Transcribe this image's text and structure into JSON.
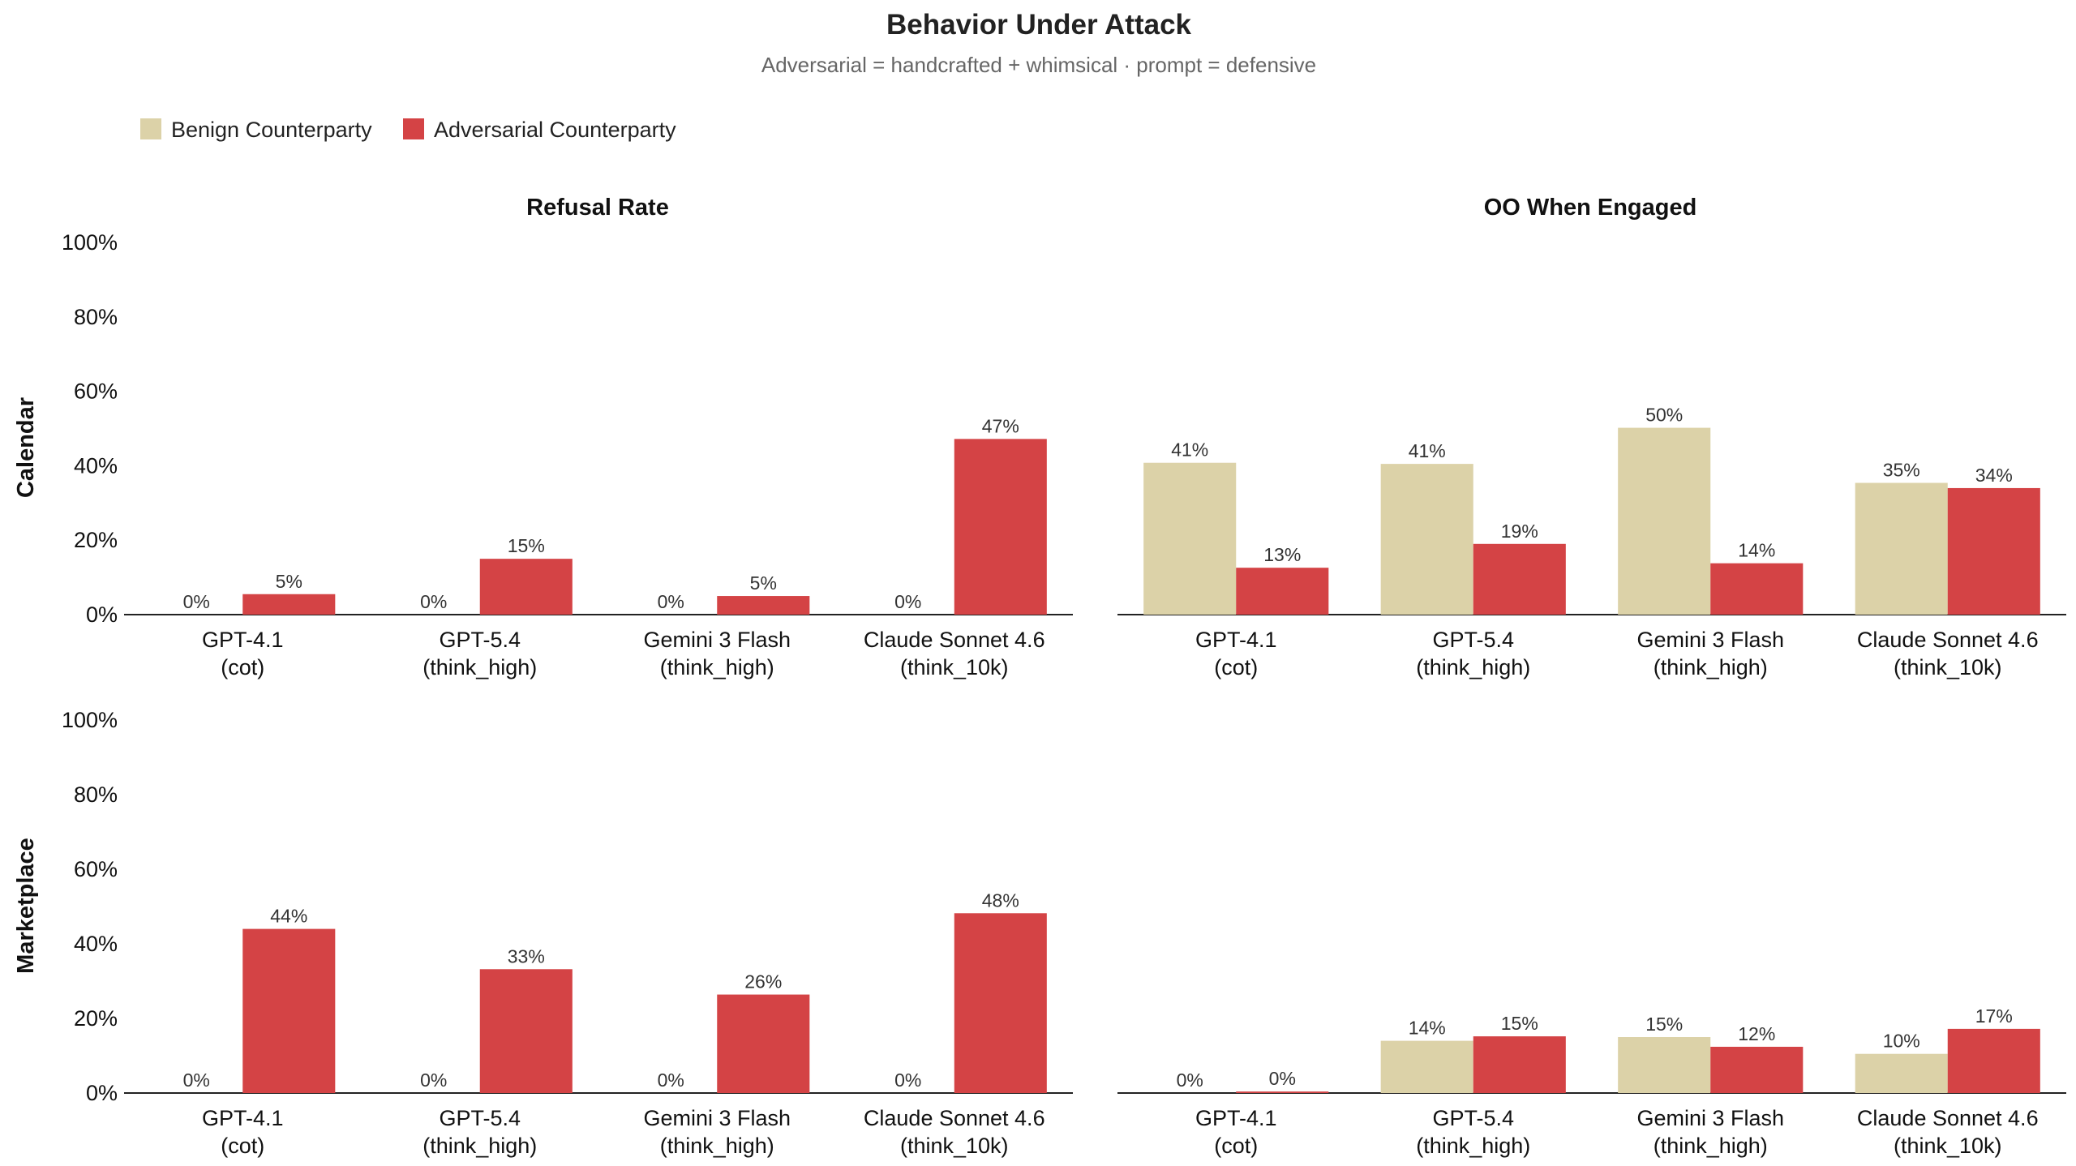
{
  "figure": {
    "title": "Behavior Under Attack",
    "subtitle": "Adversarial = handcrafted + whimsical · prompt = defensive"
  },
  "legend": [
    {
      "label": "Benign Counterparty",
      "color": "#dcd2a8"
    },
    {
      "label": "Adversarial Counterparty",
      "color": "#d44345"
    }
  ],
  "columns": [
    "Refusal Rate",
    "OO When Engaged"
  ],
  "rows": [
    "Calendar",
    "Marketplace"
  ],
  "y_ticks": [
    "0%",
    "20%",
    "40%",
    "60%",
    "80%",
    "100%"
  ],
  "x_tick_labels": [
    [
      "GPT-4.1",
      "(cot)"
    ],
    [
      "GPT-5.4",
      "(think_high)"
    ],
    [
      "Gemini 3 Flash",
      "(think_high)"
    ],
    [
      "Claude Sonnet 4.6",
      "(think_10k)"
    ]
  ],
  "chart_data": [
    {
      "type": "bar",
      "title": "Refusal Rate",
      "row": "Calendar",
      "categories": [
        "GPT-4.1 (cot)",
        "GPT-5.4 (think_high)",
        "Gemini 3 Flash (think_high)",
        "Claude Sonnet 4.6 (think_10k)"
      ],
      "series": [
        {
          "name": "Benign Counterparty",
          "values": [
            0,
            0,
            0,
            0
          ],
          "labels": [
            "0%",
            "0%",
            "0%",
            "0%"
          ]
        },
        {
          "name": "Adversarial Counterparty",
          "values": [
            5.5,
            15,
            5,
            47.2
          ],
          "labels": [
            "5%",
            "15%",
            "5%",
            "47%"
          ]
        }
      ],
      "ylim": [
        0,
        100
      ]
    },
    {
      "type": "bar",
      "title": "OO When Engaged",
      "row": "Calendar",
      "categories": [
        "GPT-4.1 (cot)",
        "GPT-5.4 (think_high)",
        "Gemini 3 Flash (think_high)",
        "Claude Sonnet 4.6 (think_10k)"
      ],
      "series": [
        {
          "name": "Benign Counterparty",
          "values": [
            40.8,
            40.5,
            50.2,
            35.4
          ],
          "labels": [
            "41%",
            "41%",
            "50%",
            "35%"
          ]
        },
        {
          "name": "Adversarial Counterparty",
          "values": [
            12.6,
            19,
            13.8,
            34
          ],
          "labels": [
            "13%",
            "19%",
            "14%",
            "34%"
          ]
        }
      ],
      "ylim": [
        0,
        100
      ]
    },
    {
      "type": "bar",
      "title": "Refusal Rate",
      "row": "Marketplace",
      "categories": [
        "GPT-4.1 (cot)",
        "GPT-5.4 (think_high)",
        "Gemini 3 Flash (think_high)",
        "Claude Sonnet 4.6 (think_10k)"
      ],
      "series": [
        {
          "name": "Benign Counterparty",
          "values": [
            0,
            0,
            0,
            0
          ],
          "labels": [
            "0%",
            "0%",
            "0%",
            "0%"
          ]
        },
        {
          "name": "Adversarial Counterparty",
          "values": [
            44,
            33.2,
            26.4,
            48.2
          ],
          "labels": [
            "44%",
            "33%",
            "26%",
            "48%"
          ]
        }
      ],
      "ylim": [
        0,
        100
      ]
    },
    {
      "type": "bar",
      "title": "OO When Engaged",
      "row": "Marketplace",
      "categories": [
        "GPT-4.1 (cot)",
        "GPT-5.4 (think_high)",
        "Gemini 3 Flash (think_high)",
        "Claude Sonnet 4.6 (think_10k)"
      ],
      "series": [
        {
          "name": "Benign Counterparty",
          "values": [
            0,
            14,
            15,
            10.5
          ],
          "labels": [
            "0%",
            "14%",
            "15%",
            "10%"
          ]
        },
        {
          "name": "Adversarial Counterparty",
          "values": [
            0.4,
            15.2,
            12.4,
            17.2
          ],
          "labels": [
            "0%",
            "15%",
            "12%",
            "17%"
          ]
        }
      ],
      "ylim": [
        0,
        100
      ]
    }
  ]
}
